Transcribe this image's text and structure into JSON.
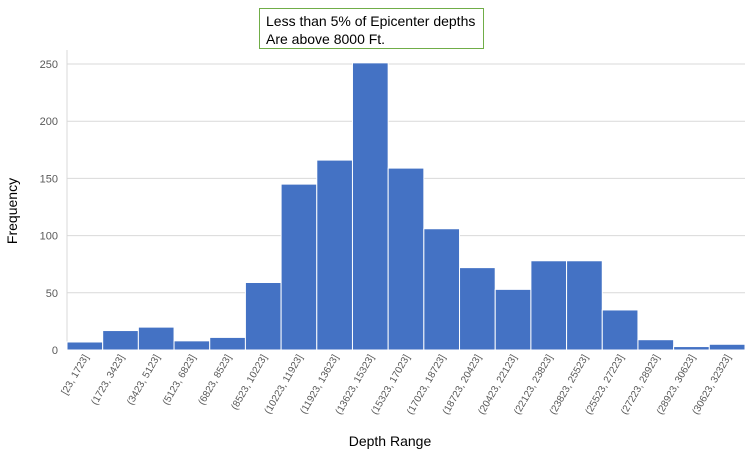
{
  "chart_data": {
    "type": "bar",
    "ylabel": "Frequency",
    "xlabel": "Depth Range",
    "ylim": [
      0,
      250
    ],
    "yticks": [
      0,
      50,
      100,
      150,
      200,
      250
    ],
    "grid": true,
    "categories": [
      "[23, 1723]",
      "(1723, 3423]",
      "(3423, 5123]",
      "(5123, 6823]",
      "(6823, 8523]",
      "(8523, 10223]",
      "(10223, 11923]",
      "(11923, 13623]",
      "(13623, 15323]",
      "(15323, 17023]",
      "(17023, 18723]",
      "(18723, 20423]",
      "(20423, 22123]",
      "(22123, 23823]",
      "(23823, 25523]",
      "(25523, 27223]",
      "(27223, 28923]",
      "(28923, 30623]",
      "(30623, 32323]"
    ],
    "values": [
      7,
      17,
      20,
      8,
      11,
      59,
      145,
      166,
      251,
      159,
      106,
      72,
      53,
      78,
      78,
      35,
      9,
      3,
      5
    ],
    "annotation": [
      "Less than 5% of Epicenter depths",
      "Are above 8000 Ft."
    ],
    "bar_color": "#4472c4",
    "grid_color": "#d9d9d9",
    "annotation_border_color": "#70ad47"
  }
}
